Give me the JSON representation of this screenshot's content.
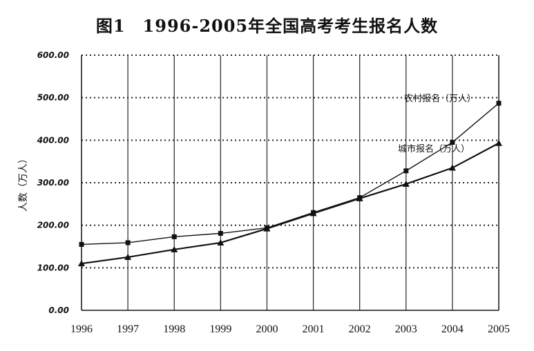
{
  "chart_data": {
    "type": "line",
    "title": "图1　1996-2005年全国高考考生报名人数",
    "ylabel": "人数（万人）",
    "xlabel": "",
    "ylim": [
      0,
      600
    ],
    "yticks": [
      "0.00",
      "100.00",
      "200.00",
      "300.00",
      "400.00",
      "500.00",
      "600.00"
    ],
    "categories": [
      "1996",
      "1997",
      "1998",
      "1999",
      "2000",
      "2001",
      "2002",
      "2003",
      "2004",
      "2005"
    ],
    "grid": true,
    "series": [
      {
        "name": "农村报名（万人）",
        "marker": "square",
        "values": [
          155,
          159,
          173,
          181,
          194,
          230,
          265,
          328,
          395,
          487
        ]
      },
      {
        "name": "城市报名（万人）",
        "marker": "triangle",
        "values": [
          110,
          125,
          143,
          159,
          192,
          228,
          263,
          297,
          335,
          393
        ]
      }
    ]
  }
}
